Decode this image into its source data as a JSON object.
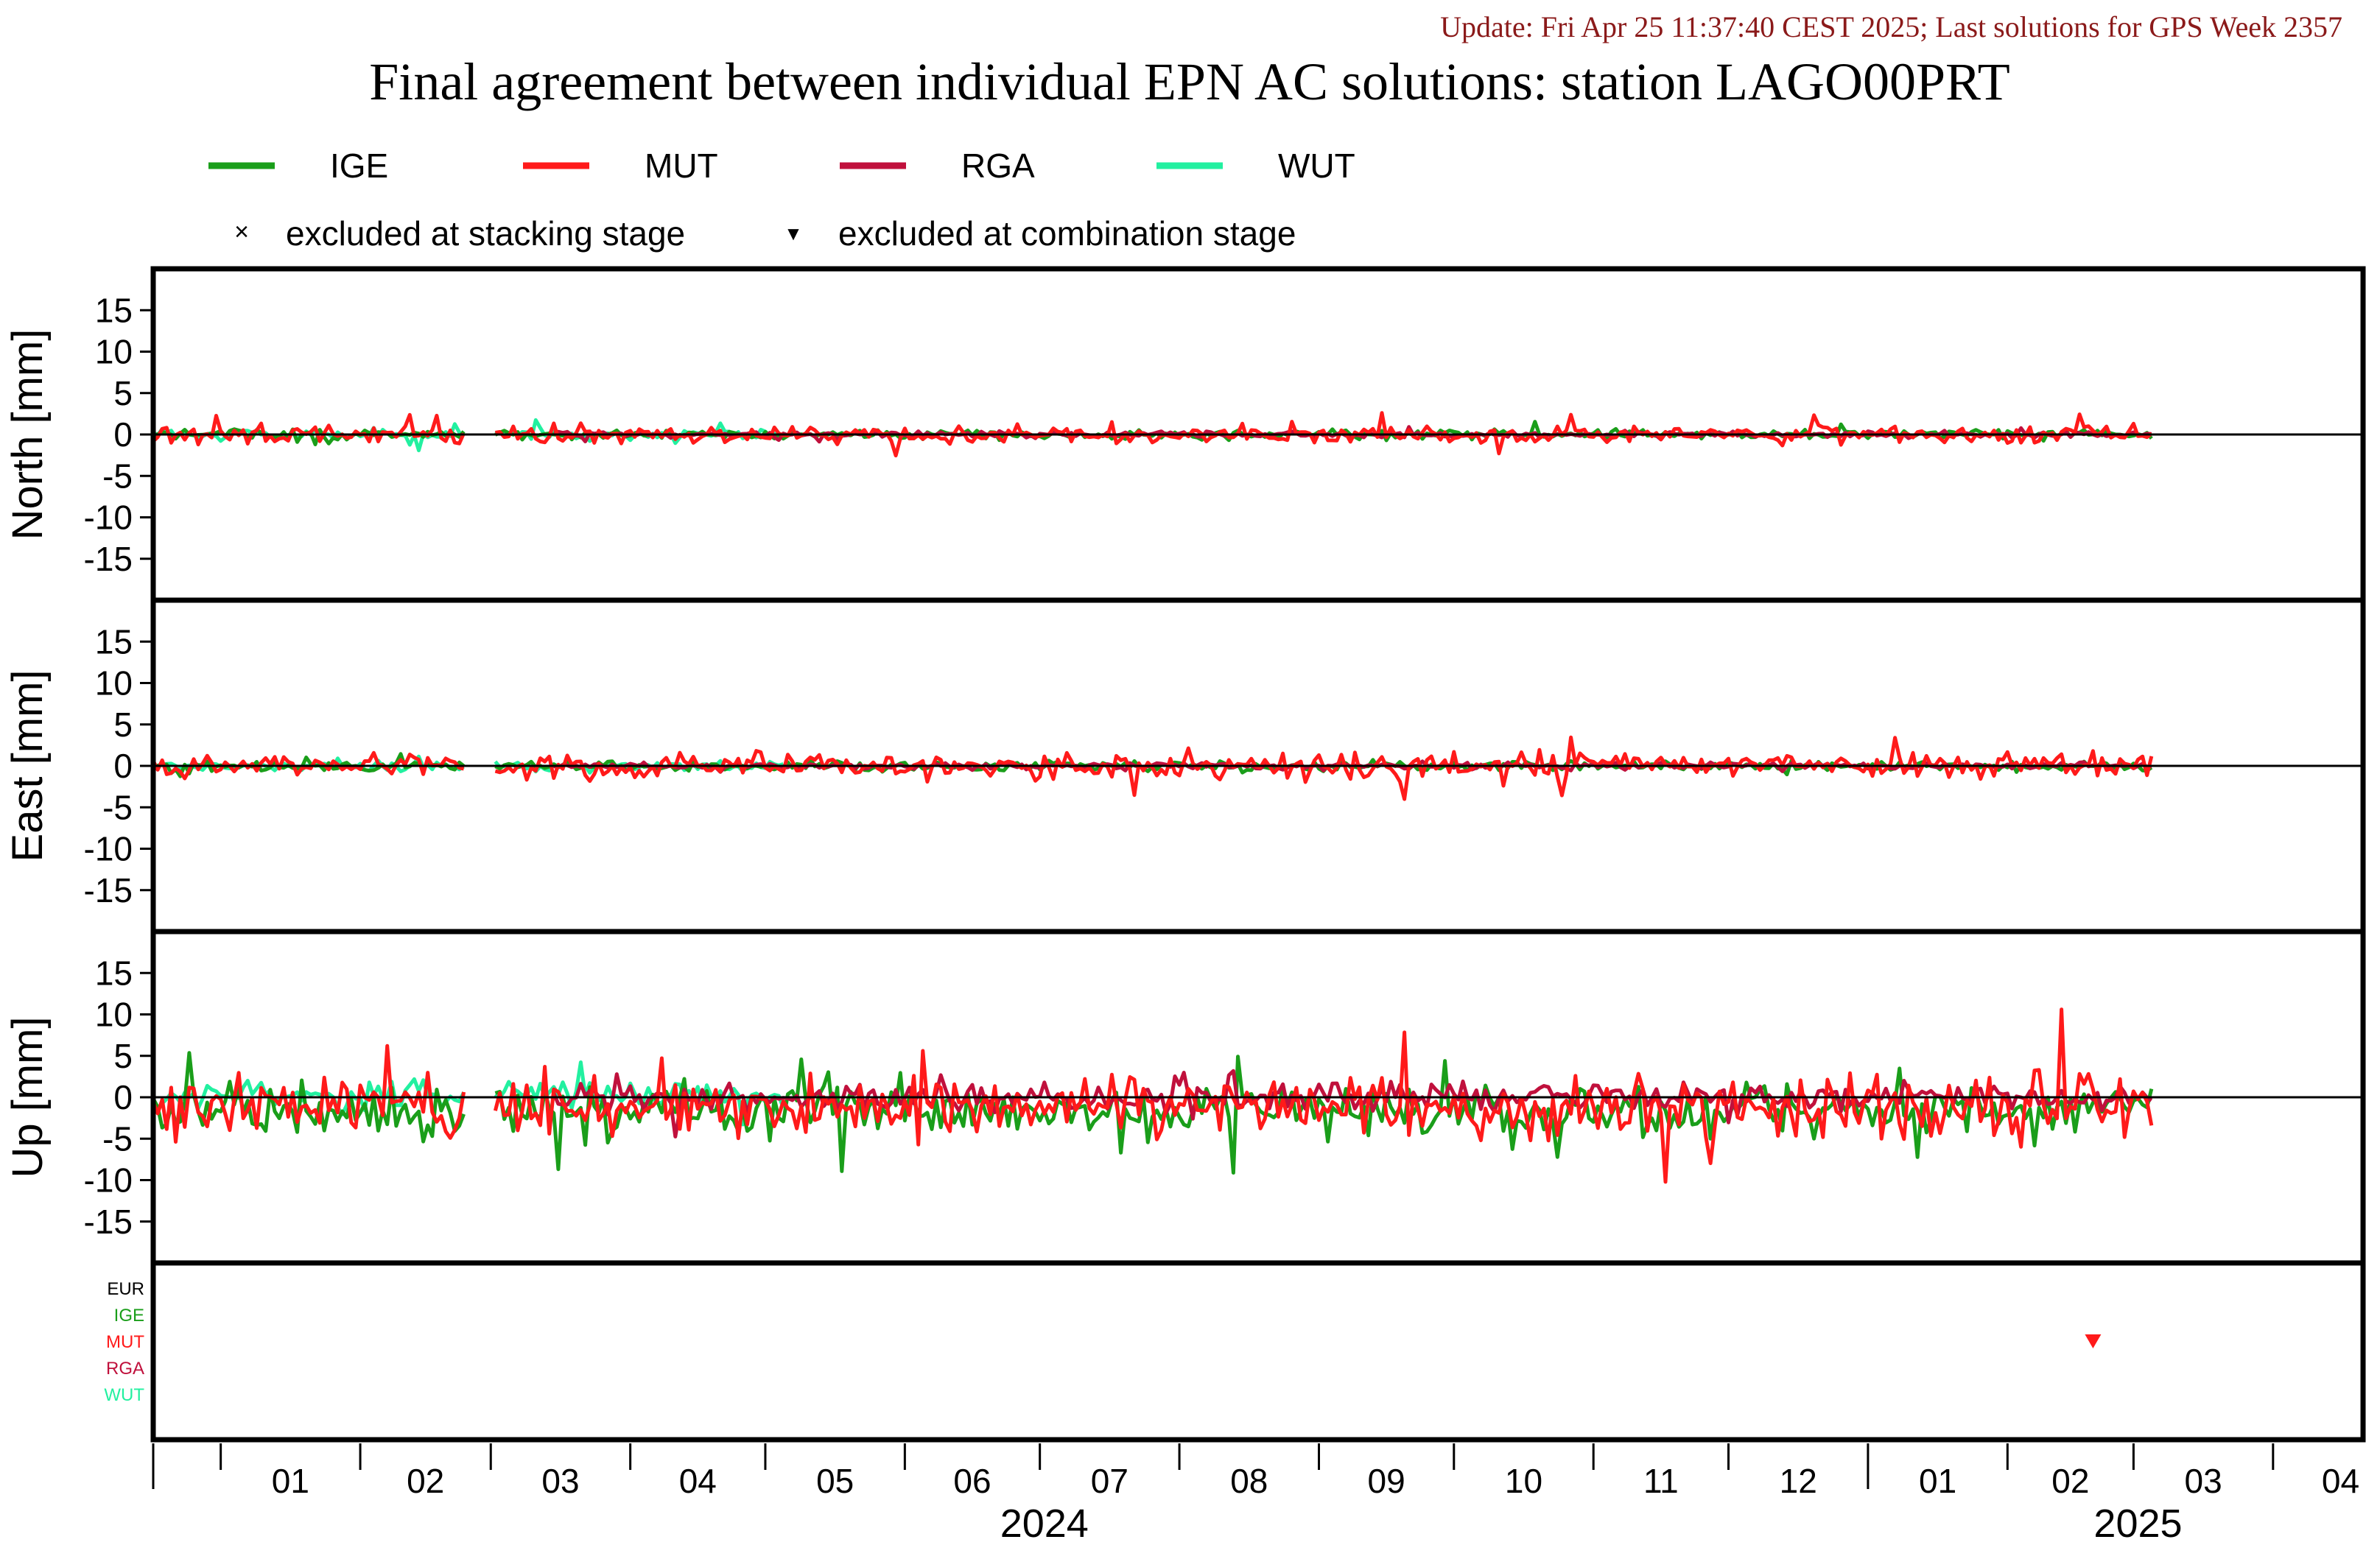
{
  "update_text": "Update: Fri Apr 25 11:37:40 CEST 2025; Last solutions for GPS Week 2357",
  "title": "Final agreement between individual EPN AC solutions: station LAGO00PRT",
  "colors": {
    "IGE": "#1a9e1a",
    "MUT": "#ff1a1a",
    "RGA": "#c0103c",
    "WUT": "#22f0a0",
    "EUR": "#000000",
    "update": "#8b1a1a"
  },
  "legend": {
    "series": [
      "IGE",
      "MUT",
      "RGA",
      "WUT"
    ],
    "stacking_marker": "×",
    "stacking_label": "excluded at stacking stage",
    "combination_marker": "▼",
    "combination_label": "excluded at combination stage"
  },
  "exclusion_panel": {
    "rows": [
      "EUR",
      "IGE",
      "MUT",
      "RGA",
      "WUT"
    ]
  },
  "chart_data": {
    "type": "line",
    "x_axis": {
      "month_ticks": [
        "01",
        "02",
        "03",
        "04",
        "05",
        "06",
        "07",
        "08",
        "09",
        "10",
        "11",
        "12",
        "01",
        "02",
        "03",
        "04"
      ],
      "year_labels": [
        "2024",
        "2025"
      ],
      "range": [
        "2023-12-17",
        "2025-04-21"
      ]
    },
    "panels": [
      {
        "ylabel": "North [mm]",
        "ylim": [
          -20,
          20
        ],
        "yticks": [
          15,
          10,
          5,
          0,
          -5,
          -10,
          -15
        ],
        "amplitude": {
          "IGE": 0.5,
          "MUT": 0.9,
          "RGA": 0.3,
          "WUT": 0.5
        }
      },
      {
        "ylabel": "East [mm]",
        "ylim": [
          -20,
          20
        ],
        "yticks": [
          15,
          10,
          5,
          0,
          -5,
          -10,
          -15
        ],
        "amplitude": {
          "IGE": 0.5,
          "MUT": 1.3,
          "RGA": 0.3,
          "WUT": 0.5
        }
      },
      {
        "ylabel": "Up [mm]",
        "ylim": [
          -20,
          20
        ],
        "yticks": [
          15,
          10,
          5,
          0,
          -5,
          -10,
          -15
        ],
        "amplitude": {
          "IGE": 2.5,
          "MUT": 3.2,
          "RGA": 1.4,
          "WUT": 1.3
        }
      }
    ],
    "series_coverage": {
      "IGE": [
        "2023-12-17",
        "2025-03-05"
      ],
      "MUT": [
        "2023-12-17",
        "2025-03-05"
      ],
      "RGA": [
        "2024-03-15",
        "2025-03-05"
      ],
      "WUT": [
        "2023-12-17",
        "2024-05-05"
      ]
    },
    "data_gap": [
      "2024-02-24",
      "2024-03-02"
    ],
    "series_bias_up": {
      "IGE": -2.0,
      "MUT": -1.5,
      "RGA": 0.0,
      "WUT": 0.5
    },
    "excluded_combination": [
      {
        "ac": "MUT",
        "date": "2025-02-20"
      }
    ]
  }
}
